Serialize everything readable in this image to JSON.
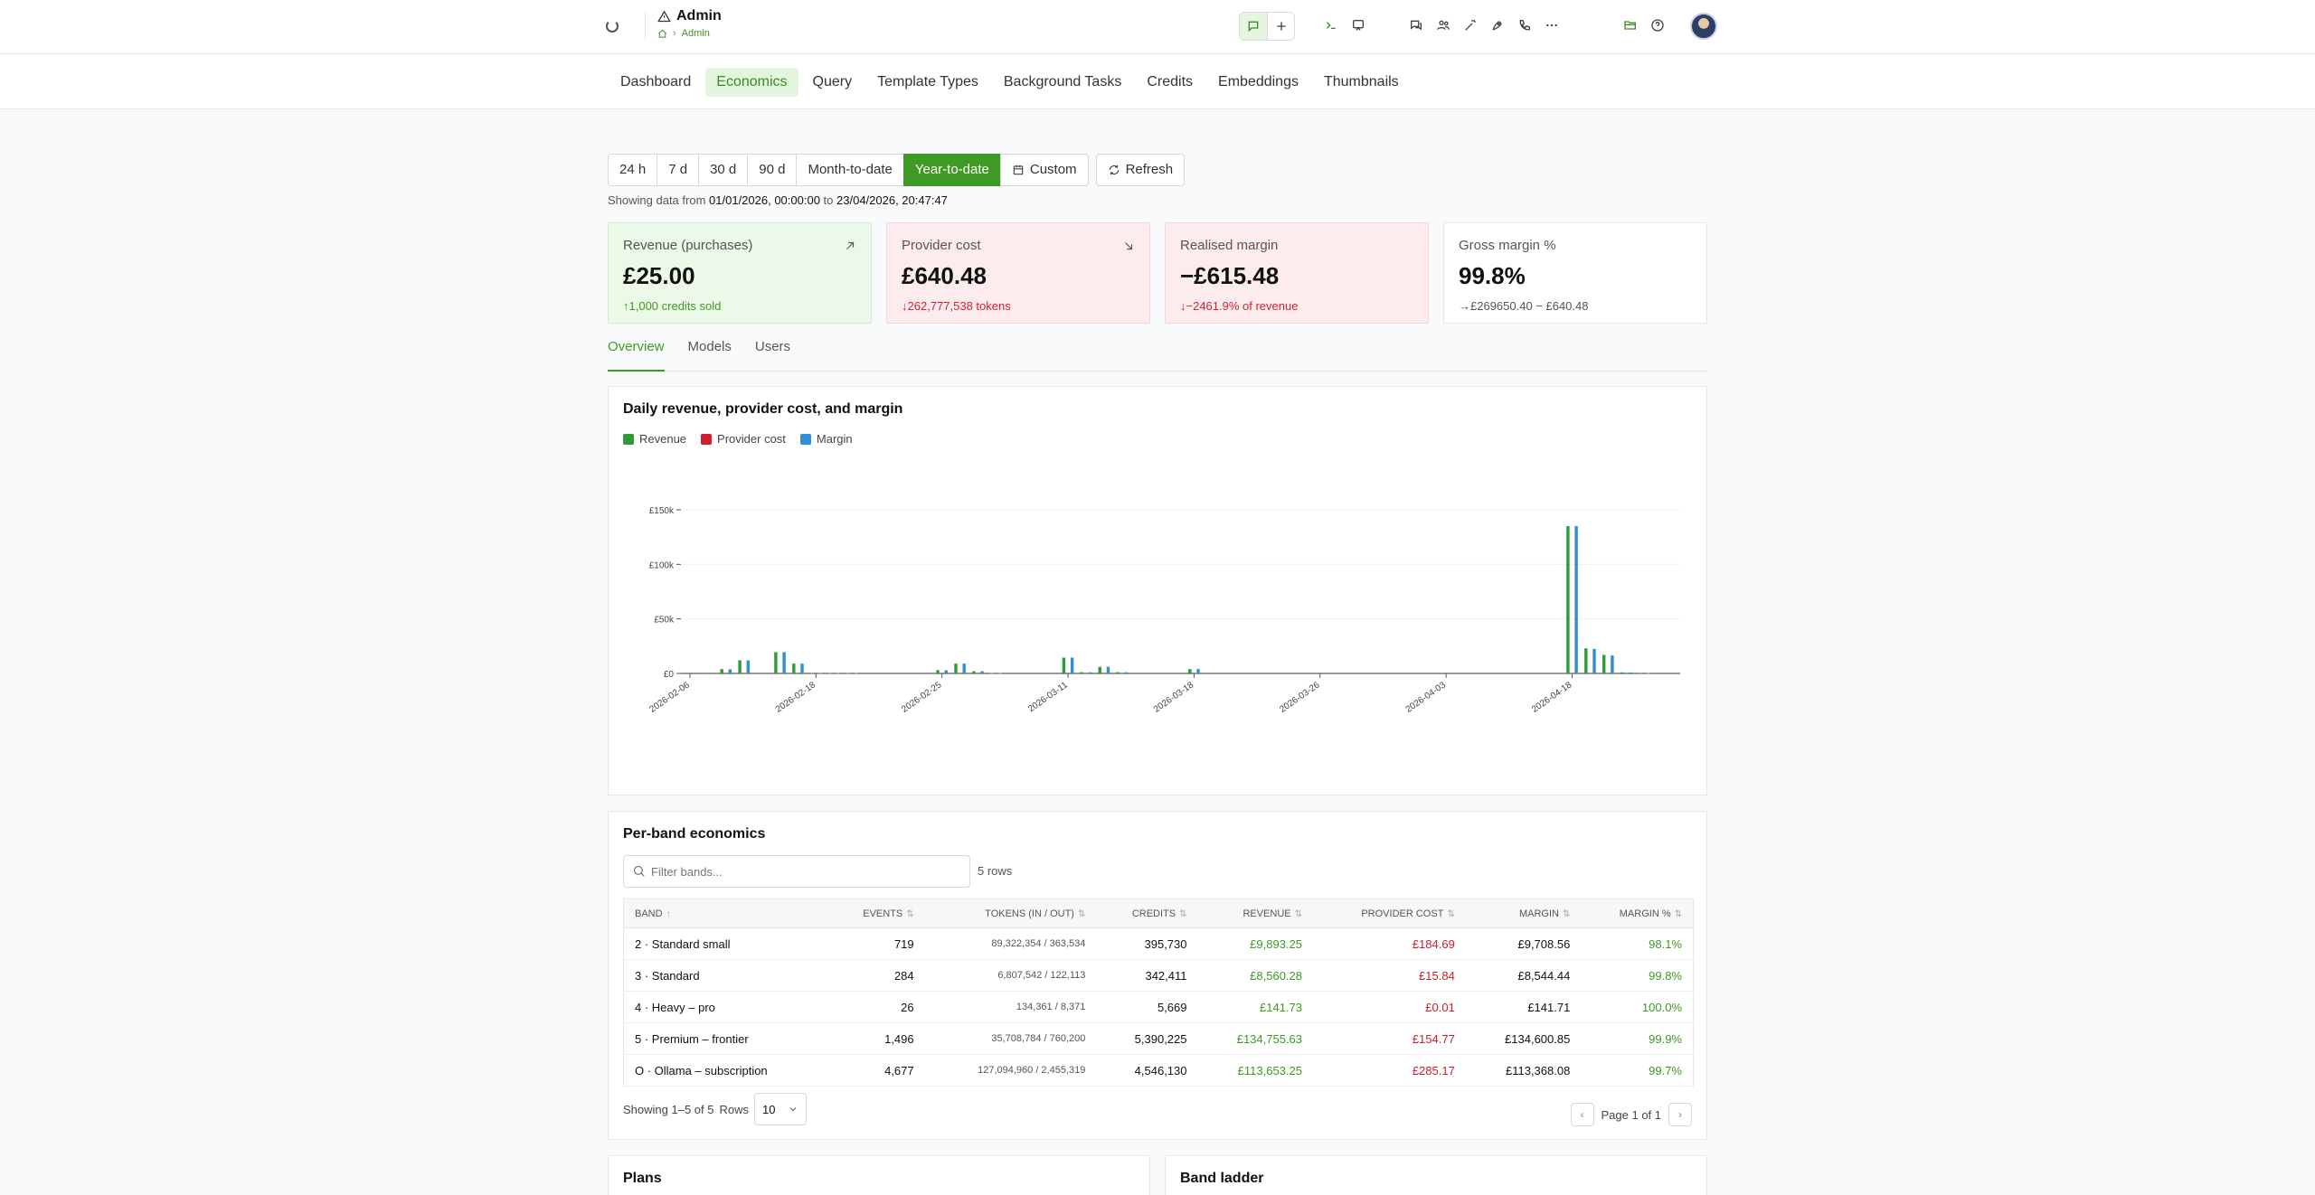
{
  "header": {
    "title": "Admin",
    "breadcrumb": "Admin"
  },
  "nav": {
    "tabs": [
      {
        "label": "Dashboard"
      },
      {
        "label": "Economics"
      },
      {
        "label": "Query"
      },
      {
        "label": "Template Types"
      },
      {
        "label": "Background Tasks"
      },
      {
        "label": "Credits"
      },
      {
        "label": "Embeddings"
      },
      {
        "label": "Thumbnails"
      }
    ],
    "active": "Economics"
  },
  "range": {
    "options": [
      "24 h",
      "7 d",
      "30 d",
      "90 d",
      "Month-to-date",
      "Year-to-date"
    ],
    "active": "Year-to-date",
    "custom_label": "Custom",
    "refresh_label": "Refresh",
    "showing_prefix": "Showing data from",
    "from": "01/01/2026, 00:00:00",
    "to_word": "to",
    "to": "23/04/2026, 20:47:47"
  },
  "cards": [
    {
      "label": "Revenue (purchases)",
      "value": "£25.00",
      "sub": "↑1,000 credits sold"
    },
    {
      "label": "Provider cost",
      "value": "£640.48",
      "sub": "↓262,777,538 tokens"
    },
    {
      "label": "Realised margin",
      "value": "−£615.48",
      "sub": "↓−2461.9% of revenue"
    },
    {
      "label": "Gross margin %",
      "value": "99.8%",
      "sub": "→£269650.40 − £640.48"
    }
  ],
  "subtabs": {
    "items": [
      "Overview",
      "Models",
      "Users"
    ],
    "active": "Overview"
  },
  "chart_panel": {
    "title": "Daily revenue, provider cost, and margin"
  },
  "chart_data": {
    "type": "bar",
    "title": "Daily revenue, provider cost, and margin",
    "xlabel": "",
    "ylabel": "",
    "ylim": [
      0,
      150000
    ],
    "yticks": [
      {
        "value": 0,
        "label": "£0"
      },
      {
        "value": 50000,
        "label": "£50k"
      },
      {
        "value": 100000,
        "label": "£100k"
      },
      {
        "value": 150000,
        "label": "£150k"
      }
    ],
    "xtick_labels": [
      "2026-02-06",
      "2026-02-18",
      "2026-02-25",
      "2026-03-11",
      "2026-03-18",
      "2026-03-26",
      "2026-04-03",
      "2026-04-18"
    ],
    "xtick_index": [
      0,
      7,
      14,
      21,
      28,
      35,
      42,
      49
    ],
    "categories": [
      "2026-02-06",
      "2026-02-09",
      "2026-02-12",
      "2026-02-13",
      "2026-02-14",
      "2026-02-16",
      "2026-02-17",
      "2026-02-18",
      "2026-02-19",
      "2026-02-20",
      "2026-02-21",
      "2026-02-22",
      "2026-02-23",
      "2026-02-24",
      "2026-02-25",
      "2026-02-26",
      "2026-02-28",
      "2026-03-01",
      "2026-03-02",
      "2026-03-03",
      "2026-03-05",
      "2026-03-11",
      "2026-03-12",
      "2026-03-13",
      "2026-03-14",
      "2026-03-15",
      "2026-03-16",
      "2026-03-17",
      "2026-03-18",
      "2026-03-19",
      "2026-03-20",
      "2026-03-21",
      "2026-03-22",
      "2026-03-23",
      "2026-03-25",
      "2026-03-26",
      "2026-03-27",
      "2026-03-28",
      "2026-03-29",
      "2026-03-30",
      "2026-03-31",
      "2026-04-01",
      "2026-04-03",
      "2026-04-05",
      "2026-04-07",
      "2026-04-09",
      "2026-04-11",
      "2026-04-13",
      "2026-04-16",
      "2026-04-18",
      "2026-04-19",
      "2026-04-20",
      "2026-04-21",
      "2026-04-22",
      "2026-04-23"
    ],
    "legend": "top-left",
    "series": [
      {
        "name": "Revenue",
        "color": "#2e9a3a",
        "values": [
          0,
          0,
          4000,
          12000,
          0,
          19500,
          9000,
          500,
          300,
          300,
          0,
          0,
          0,
          0,
          3000,
          9000,
          2000,
          300,
          0,
          0,
          0,
          14500,
          1200,
          6000,
          1200,
          0,
          0,
          0,
          4000,
          0,
          0,
          0,
          0,
          0,
          0,
          0,
          0,
          0,
          0,
          0,
          0,
          0,
          0,
          0,
          0,
          0,
          0,
          0,
          0,
          135000,
          23000,
          17000,
          1000,
          500,
          0
        ]
      },
      {
        "name": "Provider cost",
        "color": "#d11f2f",
        "values": [
          0,
          0,
          0,
          0,
          0,
          0,
          0,
          0,
          0,
          0,
          0,
          0,
          0,
          0,
          0,
          0,
          0,
          0,
          0,
          0,
          0,
          0,
          0,
          0,
          0,
          0,
          0,
          0,
          0,
          0,
          0,
          0,
          0,
          0,
          0,
          0,
          0,
          0,
          0,
          0,
          0,
          0,
          0,
          0,
          0,
          0,
          0,
          0,
          0,
          200,
          0,
          0,
          0,
          0,
          0
        ]
      },
      {
        "name": "Margin",
        "color": "#2f8fd6",
        "values": [
          0,
          0,
          3800,
          12000,
          0,
          19500,
          9000,
          500,
          300,
          300,
          0,
          0,
          0,
          0,
          2800,
          9000,
          2000,
          300,
          0,
          0,
          0,
          14500,
          1100,
          6000,
          1100,
          0,
          0,
          0,
          4000,
          0,
          0,
          0,
          0,
          0,
          0,
          0,
          0,
          0,
          0,
          0,
          0,
          0,
          0,
          0,
          0,
          0,
          0,
          0,
          0,
          135000,
          22500,
          16500,
          900,
          400,
          0
        ]
      }
    ],
    "grid": true
  },
  "band_panel": {
    "title": "Per-band economics",
    "filter_placeholder": "Filter bands...",
    "row_count": "5 rows",
    "columns": [
      "BAND",
      "EVENTS",
      "TOKENS (IN / OUT)",
      "CREDITS",
      "REVENUE",
      "PROVIDER COST",
      "MARGIN",
      "MARGIN %"
    ],
    "rows": [
      {
        "band": "2 · Standard small",
        "events": "719",
        "tokens": "89,322,354 / 363,534",
        "credits": "395,730",
        "revenue": "£9,893.25",
        "cost": "£184.69",
        "margin": "£9,708.56",
        "pct": "98.1%"
      },
      {
        "band": "3 · Standard",
        "events": "284",
        "tokens": "6,807,542 / 122,113",
        "credits": "342,411",
        "revenue": "£8,560.28",
        "cost": "£15.84",
        "margin": "£8,544.44",
        "pct": "99.8%"
      },
      {
        "band": "4 · Heavy – pro",
        "events": "26",
        "tokens": "134,361 / 8,371",
        "credits": "5,669",
        "revenue": "£141.73",
        "cost": "£0.01",
        "margin": "£141.71",
        "pct": "100.0%"
      },
      {
        "band": "5 · Premium – frontier",
        "events": "1,496",
        "tokens": "35,708,784 / 760,200",
        "credits": "5,390,225",
        "revenue": "£134,755.63",
        "cost": "£154.77",
        "margin": "£134,600.85",
        "pct": "99.9%"
      },
      {
        "band": "O · Ollama – subscription",
        "events": "4,677",
        "tokens": "127,094,960 / 2,455,319",
        "credits": "4,546,130",
        "revenue": "£113,653.25",
        "cost": "£285.17",
        "margin": "£113,368.08",
        "pct": "99.7%"
      }
    ],
    "showing": "Showing 1–5 of 5",
    "rows_label": "Rows",
    "rows_value": "10",
    "page_label": "Page 1 of 1"
  },
  "plans_panel": {
    "title": "Plans"
  },
  "ladder_panel": {
    "title": "Band ladder"
  }
}
